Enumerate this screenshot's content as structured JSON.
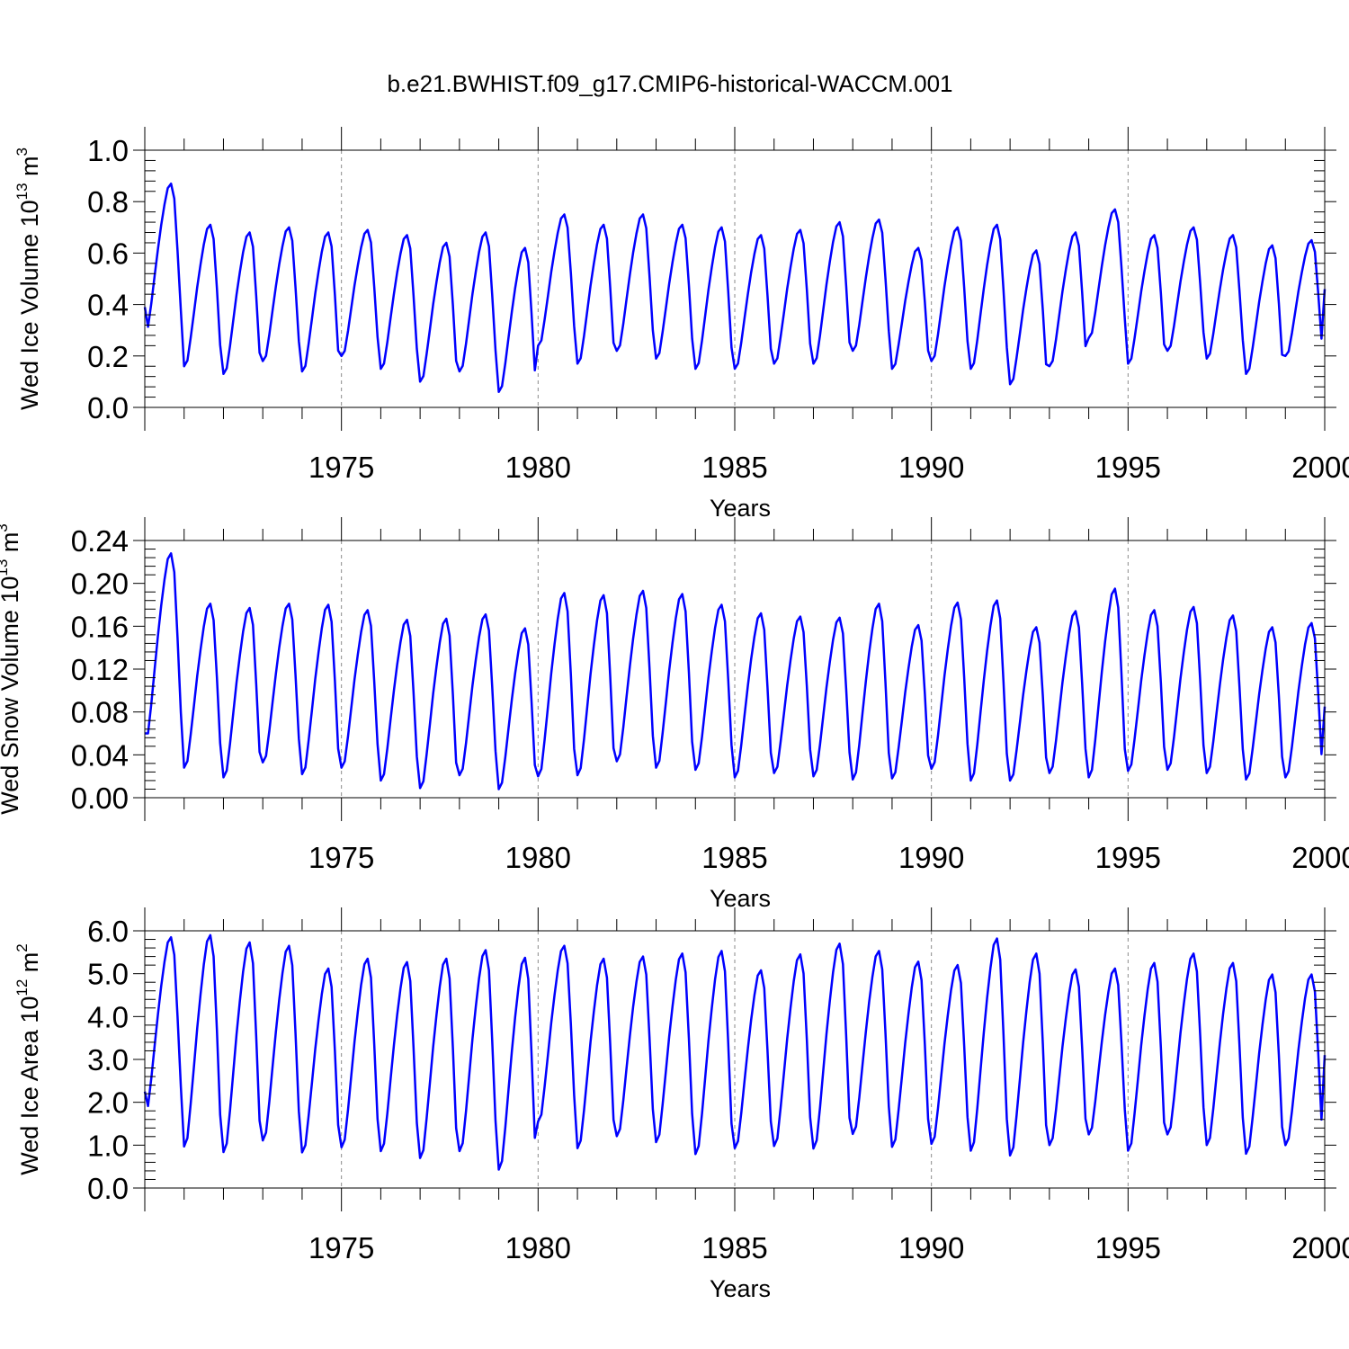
{
  "title": "b.e21.BWHIST.f09_g17.CMIP6-historical-WACCM.001",
  "colors": {
    "line": "#0000ff",
    "axis": "#000000",
    "grid": "#8a8a8a"
  },
  "chart_data": [
    {
      "type": "line",
      "ylabel_prefix": "Wed Ice Volume 10",
      "ylabel_exp": "13",
      "ylabel_unit": " m",
      "ylabel_unit_exp": "3",
      "xlabel": "Years",
      "xlim": [
        1970.0,
        2000.0
      ],
      "ylim": [
        0.0,
        1.0
      ],
      "yticks": [
        "0.0",
        "0.2",
        "0.4",
        "0.6",
        "0.8",
        "1.0"
      ],
      "yticks_values": [
        0.0,
        0.2,
        0.4,
        0.6,
        0.8,
        1.0
      ],
      "xticks": [
        "1975",
        "1980",
        "1985",
        "1990",
        "1995",
        "2000"
      ],
      "xticks_values": [
        1975,
        1980,
        1985,
        1990,
        1995,
        2000
      ],
      "series": [
        {
          "name": "Wed Ice Volume",
          "year_min": [
            0.29,
            0.16,
            0.13,
            0.18,
            0.14,
            0.2,
            0.15,
            0.1,
            0.14,
            0.06,
            0.24,
            0.17,
            0.22,
            0.19,
            0.15,
            0.15,
            0.17,
            0.17,
            0.22,
            0.15,
            0.18,
            0.15,
            0.09,
            0.16,
            0.27,
            0.17,
            0.22,
            0.19,
            0.13,
            0.2
          ],
          "year_max": [
            0.87,
            0.71,
            0.68,
            0.7,
            0.68,
            0.69,
            0.67,
            0.64,
            0.68,
            0.62,
            0.75,
            0.71,
            0.75,
            0.71,
            0.7,
            0.67,
            0.69,
            0.72,
            0.73,
            0.62,
            0.7,
            0.71,
            0.61,
            0.68,
            0.77,
            0.67,
            0.7,
            0.67,
            0.63,
            0.65
          ],
          "start": 0.39,
          "end": 0.46
        }
      ]
    },
    {
      "type": "line",
      "ylabel_prefix": "Wed Snow Volume 10",
      "ylabel_exp": "13",
      "ylabel_unit": " m",
      "ylabel_unit_exp": "3",
      "xlabel": "Years",
      "xlim": [
        1970.0,
        2000.0
      ],
      "ylim": [
        0.0,
        0.24
      ],
      "yticks": [
        "0.00",
        "0.04",
        "0.08",
        "0.12",
        "0.16",
        "0.20",
        "0.24"
      ],
      "yticks_values": [
        0.0,
        0.04,
        0.08,
        0.12,
        0.16,
        0.2,
        0.24
      ],
      "xticks": [
        "1975",
        "1980",
        "1985",
        "1990",
        "1995",
        "2000"
      ],
      "xticks_values": [
        1975,
        1980,
        1985,
        1990,
        1995,
        2000
      ],
      "series": [
        {
          "name": "Wed Snow Volume",
          "year_min": [
            0.053,
            0.028,
            0.019,
            0.033,
            0.022,
            0.028,
            0.016,
            0.009,
            0.021,
            0.008,
            0.02,
            0.021,
            0.034,
            0.028,
            0.026,
            0.019,
            0.023,
            0.02,
            0.017,
            0.018,
            0.027,
            0.016,
            0.016,
            0.023,
            0.019,
            0.025,
            0.026,
            0.023,
            0.017,
            0.019
          ],
          "year_max": [
            0.228,
            0.181,
            0.177,
            0.181,
            0.18,
            0.175,
            0.166,
            0.167,
            0.171,
            0.158,
            0.191,
            0.189,
            0.193,
            0.19,
            0.18,
            0.172,
            0.169,
            0.168,
            0.181,
            0.161,
            0.182,
            0.184,
            0.159,
            0.174,
            0.195,
            0.175,
            0.178,
            0.17,
            0.159,
            0.163
          ],
          "start": 0.06,
          "end": 0.085
        }
      ]
    },
    {
      "type": "line",
      "ylabel_prefix": "Wed Ice Area 10",
      "ylabel_exp": "12",
      "ylabel_unit": " m",
      "ylabel_unit_exp": "2",
      "xlabel": "Years",
      "xlim": [
        1970.0,
        2000.0
      ],
      "ylim": [
        0.0,
        6.0
      ],
      "yticks": [
        "0.0",
        "1.0",
        "2.0",
        "3.0",
        "4.0",
        "5.0",
        "6.0"
      ],
      "yticks_values": [
        0,
        1,
        2,
        3,
        4,
        5,
        6
      ],
      "xticks": [
        "1975",
        "1980",
        "1985",
        "1990",
        "1995",
        "2000"
      ],
      "xticks_values": [
        1975,
        1980,
        1985,
        1990,
        1995,
        2000
      ],
      "series": [
        {
          "name": "Wed Ice Area",
          "year_min": [
            1.75,
            0.97,
            0.84,
            1.11,
            0.83,
            0.95,
            0.86,
            0.7,
            0.86,
            0.43,
            1.55,
            0.93,
            1.21,
            1.07,
            0.79,
            0.93,
            0.98,
            0.92,
            1.26,
            0.96,
            1.03,
            0.87,
            0.76,
            1.0,
            1.25,
            0.87,
            1.25,
            1.0,
            0.8,
            1.0
          ],
          "year_max": [
            5.85,
            5.9,
            5.73,
            5.65,
            5.12,
            5.35,
            5.27,
            5.35,
            5.55,
            5.37,
            5.65,
            5.35,
            5.4,
            5.47,
            5.53,
            5.08,
            5.45,
            5.7,
            5.53,
            5.28,
            5.2,
            5.82,
            5.47,
            5.1,
            5.12,
            5.25,
            5.47,
            5.25,
            4.98,
            4.98
          ],
          "start": 2.25,
          "end": 3.1
        }
      ]
    }
  ]
}
